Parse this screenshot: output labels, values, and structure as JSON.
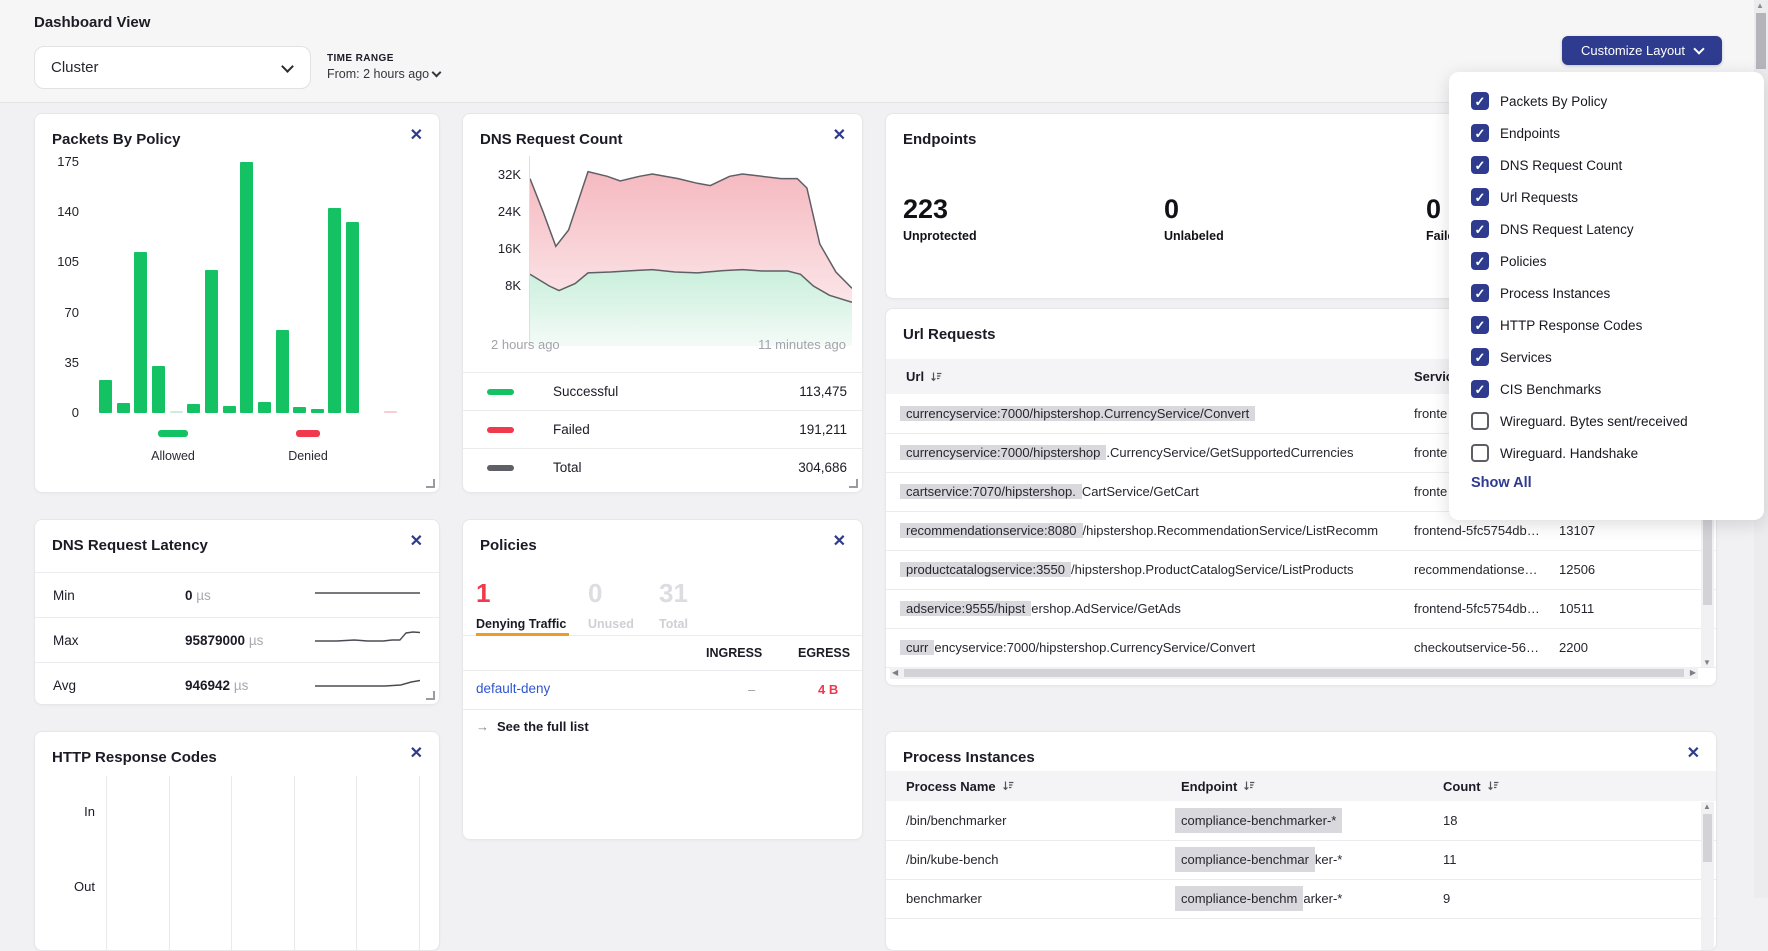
{
  "header": {
    "page_title": "Dashboard View",
    "view_select": {
      "value": "Cluster"
    },
    "time_range": {
      "label": "TIME RANGE",
      "from_label": "From: 2 hours ago"
    },
    "customize_button_label": "Customize Layout"
  },
  "customize_menu": {
    "items": [
      {
        "label": "Packets By Policy",
        "checked": true
      },
      {
        "label": "Endpoints",
        "checked": true
      },
      {
        "label": "DNS Request Count",
        "checked": true
      },
      {
        "label": "Url Requests",
        "checked": true
      },
      {
        "label": "DNS Request Latency",
        "checked": true
      },
      {
        "label": "Policies",
        "checked": true
      },
      {
        "label": "Process Instances",
        "checked": true
      },
      {
        "label": "HTTP Response Codes",
        "checked": true
      },
      {
        "label": "Services",
        "checked": true
      },
      {
        "label": "CIS Benchmarks",
        "checked": true
      },
      {
        "label": "Wireguard. Bytes sent/received",
        "checked": false
      },
      {
        "label": "Wireguard. Handshake",
        "checked": false
      }
    ],
    "show_all_label": "Show All"
  },
  "cards": {
    "packets": {
      "title": "Packets By Policy",
      "legend": [
        {
          "label": "Allowed",
          "color": "#14c163"
        },
        {
          "label": "Denied",
          "color": "#f0394d"
        }
      ]
    },
    "dns_count": {
      "title": "DNS Request Count",
      "x_left": "2 hours ago",
      "x_right": "11 minutes ago",
      "legend": [
        {
          "label": "Successful",
          "value": "113,475",
          "color": "#14c163"
        },
        {
          "label": "Failed",
          "value": "191,211",
          "color": "#f0394d"
        },
        {
          "label": "Total",
          "value": "304,686",
          "color": "#5f5f66"
        }
      ]
    },
    "endpoints": {
      "title": "Endpoints",
      "stats": [
        {
          "value": "223",
          "label": "Unprotected"
        },
        {
          "value": "0",
          "label": "Unlabeled"
        },
        {
          "value": "0",
          "label": "Failed"
        }
      ]
    },
    "url_requests": {
      "title": "Url Requests",
      "url_header": "Url",
      "service_header": "Service",
      "rows": [
        {
          "hl": "currencyservice:7000/hipstershop.CurrencyService/Convert",
          "rest": "",
          "service": "fronte",
          "count": ""
        },
        {
          "hl": "currencyservice:7000/hipstershop",
          "rest": ".CurrencyService/GetSupportedCurrencies",
          "service": "fronte",
          "count": ""
        },
        {
          "hl": "cartservice:7070/hipstershop.",
          "rest": "CartService/GetCart",
          "service": "fronte",
          "count": ""
        },
        {
          "hl": "recommendationservice:8080",
          "rest": "/hipstershop.RecommendationService/ListRecomm",
          "service": "frontend-5fc5754db…",
          "count": "13107"
        },
        {
          "hl": "productcatalogservice:3550",
          "rest": "/hipstershop.ProductCatalogService/ListProducts",
          "service": "recommendationse…",
          "count": "12506"
        },
        {
          "hl": "adservice:9555/hipst",
          "rest": "ershop.AdService/GetAds",
          "service": "frontend-5fc5754db…",
          "count": "10511"
        },
        {
          "hl": "curr",
          "rest": "encyservice:7000/hipstershop.CurrencyService/Convert",
          "service": "checkoutservice-56…",
          "count": "2200"
        }
      ]
    },
    "dns_latency": {
      "title": "DNS Request Latency",
      "rows": [
        {
          "label": "Min",
          "value": "0",
          "unit": "µs"
        },
        {
          "label": "Max",
          "value": "95879000",
          "unit": "µs"
        },
        {
          "label": "Avg",
          "value": "946942",
          "unit": "µs"
        }
      ]
    },
    "policies": {
      "title": "Policies",
      "stats": [
        {
          "value": "1",
          "label": "Denying Traffic",
          "active": true
        },
        {
          "value": "0",
          "label": "Unused",
          "active": false
        },
        {
          "value": "31",
          "label": "Total",
          "active": false
        }
      ],
      "ingress_header": "INGRESS",
      "egress_header": "EGRESS",
      "row": {
        "name": "default-deny",
        "ingress": "–",
        "egress": "4 B"
      },
      "see_full_list": "See the full list"
    },
    "http_codes": {
      "title": "HTTP Response Codes",
      "row_labels": [
        "In",
        "Out"
      ]
    },
    "process": {
      "title": "Process Instances",
      "headers": [
        "Process Name",
        "Endpoint",
        "Count"
      ],
      "rows": [
        {
          "name": "/bin/benchmarker",
          "hl": "compliance-benchmarker-*",
          "rest": "",
          "count": "18"
        },
        {
          "name": "/bin/kube-bench",
          "hl": "compliance-benchmar",
          "rest": "ker-*",
          "count": "11"
        },
        {
          "name": "benchmarker",
          "hl": "compliance-benchm",
          "rest": "arker-*",
          "count": "9"
        }
      ]
    }
  },
  "chart_data": [
    {
      "type": "bar",
      "title": "Packets By Policy",
      "ylim": [
        0,
        175
      ],
      "yticks": [
        0,
        35,
        70,
        105,
        140,
        175
      ],
      "grid": false,
      "legend_position": "bottom",
      "series": [
        {
          "name": "Allowed",
          "color": "#14c163",
          "values": [
            23,
            7,
            112,
            33,
            1,
            6,
            100,
            5,
            175,
            8,
            58,
            4,
            3,
            143,
            133
          ]
        },
        {
          "name": "Denied",
          "color": "#f0394d",
          "values": [
            1
          ]
        }
      ]
    },
    {
      "type": "area",
      "title": "DNS Request Count",
      "xlabels": [
        "2 hours ago",
        "11 minutes ago"
      ],
      "yticks": [
        "8K",
        "16K",
        "24K",
        "32K"
      ],
      "ylim": [
        0,
        34000
      ],
      "x_unit": "percent_of_range",
      "series": [
        {
          "name": "Failed/Total (upper)",
          "stroke": "#5f5f66",
          "fill_top": "#f5b9c0",
          "fill_bottom": "#fdf4f5",
          "points": [
            [
              0,
              31
            ],
            [
              4,
              24
            ],
            [
              8,
              16.5
            ],
            [
              12,
              20
            ],
            [
              18,
              32.5
            ],
            [
              24,
              31.5
            ],
            [
              28,
              30.5
            ],
            [
              34,
              31.5
            ],
            [
              38,
              32
            ],
            [
              46,
              31
            ],
            [
              52,
              30
            ],
            [
              56,
              29.5
            ],
            [
              62,
              31.5
            ],
            [
              66,
              32
            ],
            [
              72,
              31.5
            ],
            [
              78,
              31
            ],
            [
              83,
              31
            ],
            [
              86,
              29
            ],
            [
              90,
              17
            ],
            [
              95,
              11
            ],
            [
              100,
              7.5
            ]
          ]
        },
        {
          "name": "Successful (lower)",
          "stroke": "#5f5f66",
          "fill_top": "#c9efdc",
          "fill_bottom": "#f4fbf7",
          "points": [
            [
              0,
              10.5
            ],
            [
              6,
              8
            ],
            [
              9,
              7
            ],
            [
              14,
              8.5
            ],
            [
              18,
              10.8
            ],
            [
              25,
              11
            ],
            [
              32,
              11.3
            ],
            [
              38,
              11.5
            ],
            [
              45,
              11
            ],
            [
              52,
              10.8
            ],
            [
              60,
              11.3
            ],
            [
              66,
              11.5
            ],
            [
              72,
              11.2
            ],
            [
              80,
              11.2
            ],
            [
              84,
              10.5
            ],
            [
              88,
              8
            ],
            [
              93,
              6
            ],
            [
              100,
              4.5
            ]
          ]
        }
      ]
    },
    {
      "type": "line",
      "title": "DNS Request Latency sparklines",
      "series": [
        {
          "name": "min",
          "points": [
            [
              0,
              11
            ],
            [
              120,
              11
            ]
          ]
        },
        {
          "name": "max",
          "points": [
            [
              0,
              14
            ],
            [
              25,
              14
            ],
            [
              45,
              13
            ],
            [
              60,
              14
            ],
            [
              78,
              14
            ],
            [
              88,
              13
            ],
            [
              97,
              13
            ],
            [
              104,
              6
            ],
            [
              112,
              5
            ],
            [
              120,
              5.5
            ]
          ]
        },
        {
          "name": "avg",
          "points": [
            [
              0,
              14
            ],
            [
              50,
              14
            ],
            [
              80,
              14
            ],
            [
              98,
              13
            ],
            [
              110,
              10
            ],
            [
              120,
              8.5
            ]
          ]
        }
      ]
    }
  ],
  "colors": {
    "accent_navy": "#2e3b8e",
    "green": "#14c163",
    "red": "#f0394d",
    "orange": "#f09a26",
    "link_blue": "#2f55d4",
    "highlight_gray": "#d9d9dd"
  }
}
